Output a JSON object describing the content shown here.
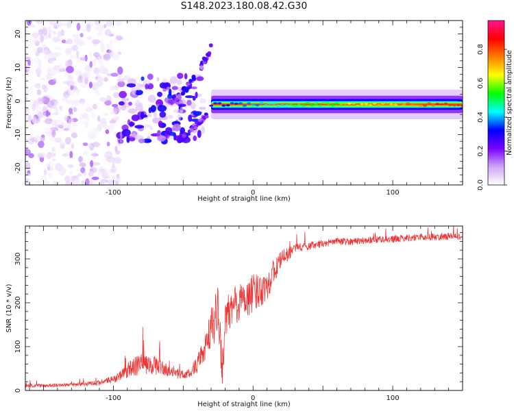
{
  "title": "S148.2023.180.08.42.G30",
  "colors": {
    "snr_line": "#ee3333",
    "axis": "#111111"
  },
  "chart_data": [
    {
      "type": "heatmap",
      "xlabel": "Height of straight line (km)",
      "ylabel": "Frequency (Hz)",
      "xlim": [
        -163,
        150
      ],
      "ylim": [
        -25,
        24
      ],
      "x_ticks": [
        -100,
        0,
        100
      ],
      "y_ticks": [
        -20,
        -10,
        0,
        10,
        20
      ],
      "grid": false,
      "colorbar": {
        "label": "Normalized spectral amplitude",
        "range": [
          0,
          0.97
        ],
        "ticks": [
          "0.0",
          "0.2",
          "0.4",
          "0.6",
          "0.8"
        ],
        "colormap": [
          "#ffffff",
          "#cfa4f7",
          "#7a00ff",
          "#0000ff",
          "#00ffff",
          "#00ff00",
          "#ffff00",
          "#ff7f00",
          "#ff0000",
          "#ff1493"
        ]
      },
      "features": [
        {
          "region": "scattered noise",
          "x": [
            -163,
            -95
          ],
          "freq": [
            -25,
            24
          ],
          "amplitude": [
            0.02,
            0.15
          ]
        },
        {
          "region": "ridge",
          "x": [
            -30,
            150
          ],
          "freq_center": -1,
          "freq_halfwidth": 2,
          "amplitude": [
            0.3,
            0.95
          ]
        },
        {
          "region": "upper arc",
          "x": [
            -60,
            -30
          ],
          "freq": [
            0,
            16
          ],
          "amplitude": [
            0.1,
            0.35
          ]
        },
        {
          "region": "lower arc",
          "x": [
            -50,
            -33
          ],
          "freq": [
            -11,
            -4
          ],
          "amplitude": [
            0.1,
            0.3
          ]
        }
      ]
    },
    {
      "type": "line",
      "xlabel": "Height of straight line (km)",
      "ylabel": "SNR (10 * v/v)",
      "xlim": [
        -163,
        150
      ],
      "ylim": [
        0,
        375
      ],
      "x_ticks": [
        -100,
        0,
        100
      ],
      "y_ticks": [
        0,
        100,
        200,
        300
      ],
      "grid": false,
      "series": [
        {
          "x": [
            -163,
            -140,
            -120,
            -110,
            -100,
            -95,
            -90,
            -85,
            -80,
            -75,
            -70,
            -65,
            -60,
            -55,
            -50,
            -45,
            -40,
            -35,
            -30,
            -25,
            -22,
            -20,
            -15,
            -10,
            -5,
            0,
            5,
            10,
            15,
            20,
            25,
            30,
            40,
            50,
            60,
            70,
            80,
            90,
            100,
            110,
            120,
            130,
            140,
            150
          ],
          "y": [
            10,
            12,
            14,
            18,
            25,
            35,
            45,
            55,
            60,
            55,
            58,
            50,
            45,
            40,
            35,
            40,
            60,
            90,
            140,
            180,
            50,
            150,
            190,
            200,
            210,
            220,
            230,
            240,
            270,
            300,
            310,
            325,
            330,
            335,
            340,
            340,
            342,
            345,
            345,
            348,
            350,
            350,
            352,
            350
          ],
          "noise": [
            4,
            4,
            5,
            6,
            8,
            12,
            18,
            22,
            25,
            22,
            22,
            18,
            15,
            12,
            10,
            12,
            20,
            30,
            45,
            60,
            40,
            55,
            50,
            45,
            45,
            45,
            40,
            35,
            30,
            20,
            15,
            10,
            10,
            8,
            8,
            8,
            8,
            8,
            8,
            8,
            8,
            8,
            8,
            8
          ]
        }
      ]
    }
  ]
}
